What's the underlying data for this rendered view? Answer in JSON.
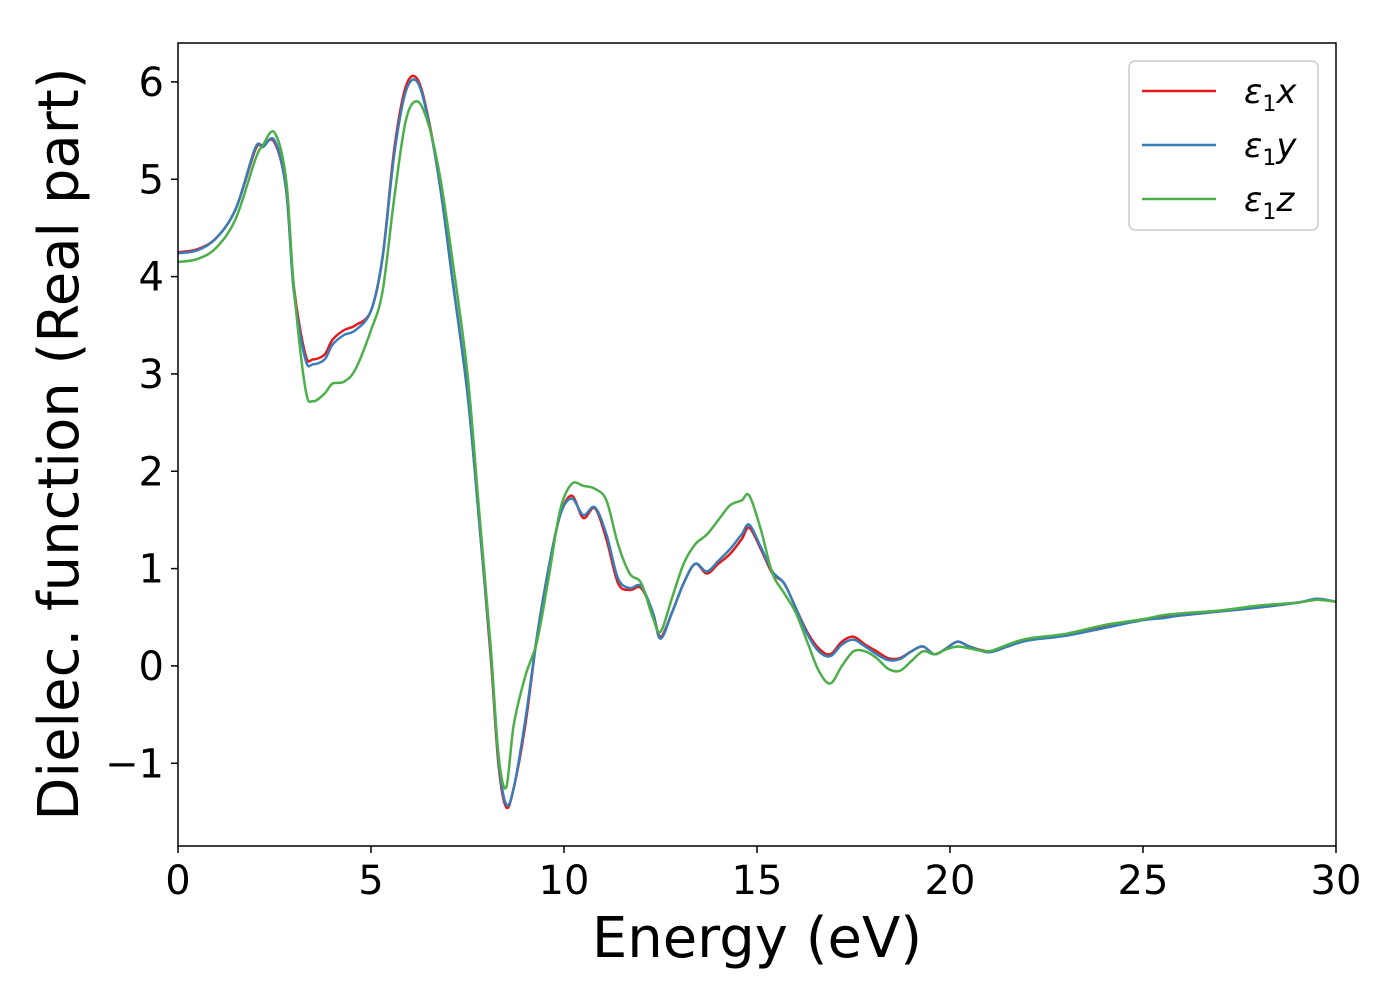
{
  "chart_data": {
    "type": "line",
    "title": "",
    "xlabel": "Energy (eV)",
    "ylabel": "Dielec. function (Real part)",
    "xlim": [
      0,
      30
    ],
    "ylim": [
      -1.85,
      6.4
    ],
    "xticks": [
      0,
      5,
      10,
      15,
      20,
      25,
      30
    ],
    "xtick_labels": [
      "0",
      "5",
      "10",
      "15",
      "20",
      "25",
      "30"
    ],
    "yticks": [
      -1,
      0,
      1,
      2,
      3,
      4,
      5,
      6
    ],
    "ytick_labels": [
      "−1",
      "0",
      "1",
      "2",
      "3",
      "4",
      "5",
      "6"
    ],
    "grid": false,
    "legend_position": "top-right",
    "series": [
      {
        "name": "ε₁x",
        "legend": {
          "symbol": "ε",
          "sub": "1",
          "axis": "x"
        },
        "color": "#e41a1c",
        "x": [
          0,
          0.5,
          1,
          1.5,
          2,
          2.2,
          2.5,
          2.8,
          3,
          3.3,
          3.5,
          3.8,
          4,
          4.3,
          4.6,
          5,
          5.3,
          5.6,
          5.9,
          6.2,
          6.5,
          6.8,
          7.1,
          7.5,
          7.8,
          8.1,
          8.3,
          8.5,
          8.7,
          9,
          9.3,
          9.6,
          9.9,
          10.2,
          10.5,
          10.8,
          11.1,
          11.4,
          11.7,
          12,
          12.3,
          12.5,
          12.8,
          13.1,
          13.4,
          13.7,
          14,
          14.3,
          14.6,
          14.8,
          15.1,
          15.4,
          15.7,
          16,
          16.3,
          16.6,
          16.9,
          17.2,
          17.5,
          17.8,
          18.1,
          18.4,
          18.7,
          19,
          19.3,
          19.6,
          19.9,
          20.2,
          20.5,
          21,
          21.5,
          22,
          23,
          24,
          25,
          25.5,
          26,
          27,
          28,
          29,
          29.5,
          30
        ],
        "y": [
          4.25,
          4.28,
          4.4,
          4.7,
          5.3,
          5.35,
          5.38,
          4.9,
          3.9,
          3.2,
          3.15,
          3.2,
          3.35,
          3.45,
          3.5,
          3.65,
          4.2,
          5.3,
          5.95,
          6.03,
          5.6,
          4.9,
          4.0,
          2.8,
          1.5,
          0.1,
          -1.0,
          -1.45,
          -1.25,
          -0.6,
          0.3,
          1.0,
          1.55,
          1.75,
          1.52,
          1.62,
          1.3,
          0.85,
          0.78,
          0.8,
          0.55,
          0.3,
          0.55,
          0.85,
          1.05,
          0.95,
          1.05,
          1.15,
          1.3,
          1.42,
          1.2,
          0.95,
          0.85,
          0.6,
          0.35,
          0.18,
          0.12,
          0.25,
          0.3,
          0.22,
          0.15,
          0.08,
          0.08,
          0.15,
          0.2,
          0.12,
          0.18,
          0.25,
          0.2,
          0.15,
          0.2,
          0.27,
          0.32,
          0.4,
          0.48,
          0.5,
          0.52,
          0.56,
          0.6,
          0.65,
          0.68,
          0.66
        ]
      },
      {
        "name": "ε₁y",
        "legend": {
          "symbol": "ε",
          "sub": "1",
          "axis": "y"
        },
        "color": "#377eb8",
        "x": [
          0,
          0.5,
          1,
          1.5,
          2,
          2.2,
          2.5,
          2.8,
          3,
          3.3,
          3.5,
          3.8,
          4,
          4.3,
          4.6,
          5,
          5.3,
          5.6,
          5.9,
          6.2,
          6.5,
          6.8,
          7.1,
          7.5,
          7.8,
          8.1,
          8.3,
          8.5,
          8.7,
          9,
          9.3,
          9.6,
          9.9,
          10.2,
          10.5,
          10.8,
          11.1,
          11.4,
          11.7,
          12,
          12.3,
          12.5,
          12.8,
          13.1,
          13.4,
          13.7,
          14,
          14.3,
          14.6,
          14.8,
          15.1,
          15.4,
          15.7,
          16,
          16.3,
          16.6,
          16.9,
          17.2,
          17.5,
          17.8,
          18.1,
          18.4,
          18.7,
          19,
          19.3,
          19.6,
          19.9,
          20.2,
          20.5,
          21,
          21.5,
          22,
          23,
          24,
          25,
          25.5,
          26,
          27,
          28,
          29,
          29.5,
          30
        ],
        "y": [
          4.24,
          4.27,
          4.4,
          4.7,
          5.32,
          5.33,
          5.4,
          4.9,
          3.85,
          3.15,
          3.1,
          3.15,
          3.3,
          3.4,
          3.45,
          3.65,
          4.2,
          5.25,
          5.9,
          6.0,
          5.58,
          4.9,
          4.0,
          2.8,
          1.5,
          0.15,
          -0.95,
          -1.42,
          -1.25,
          -0.55,
          0.3,
          1.0,
          1.55,
          1.72,
          1.55,
          1.63,
          1.35,
          0.9,
          0.8,
          0.82,
          0.55,
          0.28,
          0.55,
          0.85,
          1.05,
          0.97,
          1.08,
          1.2,
          1.35,
          1.45,
          1.22,
          0.97,
          0.85,
          0.6,
          0.33,
          0.15,
          0.1,
          0.22,
          0.27,
          0.2,
          0.12,
          0.06,
          0.07,
          0.15,
          0.2,
          0.12,
          0.18,
          0.25,
          0.2,
          0.14,
          0.2,
          0.26,
          0.31,
          0.39,
          0.47,
          0.49,
          0.52,
          0.56,
          0.6,
          0.65,
          0.69,
          0.66
        ]
      },
      {
        "name": "ε₁z",
        "legend": {
          "symbol": "ε",
          "sub": "1",
          "axis": "z"
        },
        "color": "#4daf4a",
        "x": [
          0,
          0.5,
          1,
          1.5,
          2,
          2.2,
          2.5,
          2.8,
          3,
          3.3,
          3.5,
          3.8,
          4,
          4.3,
          4.6,
          5,
          5.3,
          5.6,
          5.9,
          6.2,
          6.5,
          6.8,
          7.1,
          7.5,
          7.8,
          8.1,
          8.3,
          8.5,
          8.7,
          9,
          9.3,
          9.6,
          9.9,
          10.2,
          10.5,
          10.8,
          11.1,
          11.4,
          11.7,
          12,
          12.3,
          12.5,
          12.8,
          13.1,
          13.4,
          13.7,
          14,
          14.3,
          14.6,
          14.8,
          15.1,
          15.4,
          15.7,
          16,
          16.3,
          16.6,
          16.9,
          17.2,
          17.5,
          17.8,
          18.1,
          18.4,
          18.7,
          19,
          19.3,
          19.6,
          19.9,
          20.2,
          20.5,
          21,
          21.5,
          22,
          23,
          24,
          25,
          25.5,
          26,
          27,
          28,
          29,
          29.5,
          30
        ],
        "y": [
          4.15,
          4.18,
          4.3,
          4.6,
          5.2,
          5.35,
          5.48,
          5.0,
          3.9,
          2.85,
          2.72,
          2.8,
          2.9,
          2.92,
          3.05,
          3.45,
          3.85,
          4.8,
          5.6,
          5.8,
          5.55,
          5.0,
          4.2,
          3.0,
          1.6,
          0.2,
          -0.9,
          -1.25,
          -0.6,
          -0.1,
          0.25,
          0.9,
          1.6,
          1.87,
          1.85,
          1.82,
          1.7,
          1.25,
          0.95,
          0.85,
          0.5,
          0.35,
          0.7,
          1.05,
          1.25,
          1.35,
          1.5,
          1.65,
          1.7,
          1.75,
          1.4,
          0.95,
          0.75,
          0.55,
          0.25,
          -0.05,
          -0.18,
          0.0,
          0.15,
          0.15,
          0.08,
          -0.03,
          -0.05,
          0.05,
          0.15,
          0.12,
          0.17,
          0.2,
          0.18,
          0.15,
          0.22,
          0.28,
          0.33,
          0.42,
          0.48,
          0.52,
          0.54,
          0.57,
          0.62,
          0.65,
          0.68,
          0.66
        ]
      }
    ]
  }
}
